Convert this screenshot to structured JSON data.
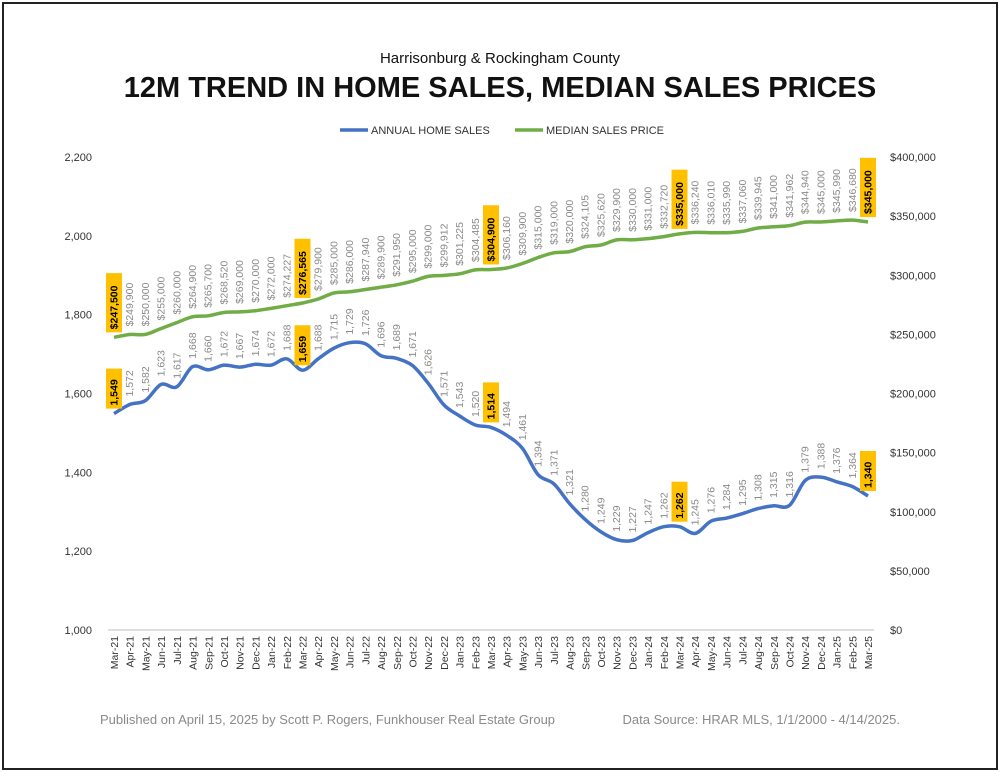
{
  "header": {
    "subtitle": "Harrisonburg & Rockingham County",
    "title": "12M TREND IN HOME SALES, MEDIAN SALES PRICES"
  },
  "footer": {
    "published": "Published on April 15, 2025 by Scott P. Rogers, Funkhouser Real Estate Group",
    "source": "Data Source: HRAR MLS, 1/1/2000 - 4/14/2025."
  },
  "colors": {
    "home_sales": "#4472C4",
    "median_price": "#70AD47",
    "highlight": "#FFC000",
    "axis_text": "#333333",
    "label_text": "#8a8a8a"
  },
  "chart_data": {
    "type": "line",
    "categories": [
      "Mar-21",
      "Apr-21",
      "May-21",
      "Jun-21",
      "Jul-21",
      "Aug-21",
      "Sep-21",
      "Oct-21",
      "Nov-21",
      "Dec-21",
      "Jan-22",
      "Feb-22",
      "Mar-22",
      "Apr-22",
      "May-22",
      "Jun-22",
      "Jul-22",
      "Aug-22",
      "Sep-22",
      "Oct-22",
      "Nov-22",
      "Dec-22",
      "Jan-23",
      "Feb-23",
      "Mar-23",
      "Apr-23",
      "May-23",
      "Jun-23",
      "Jul-23",
      "Aug-23",
      "Sep-23",
      "Oct-23",
      "Nov-23",
      "Dec-23",
      "Jan-24",
      "Feb-24",
      "Mar-24",
      "Apr-24",
      "May-24",
      "Jun-24",
      "Jul-24",
      "Aug-24",
      "Sep-24",
      "Oct-24",
      "Nov-24",
      "Dec-24",
      "Jan-25",
      "Feb-25",
      "Mar-25"
    ],
    "legend_position": "top",
    "series": [
      {
        "name": "ANNUAL HOME SALES",
        "axis": "left",
        "values": [
          1549,
          1572,
          1582,
          1623,
          1617,
          1668,
          1660,
          1672,
          1667,
          1674,
          1672,
          1688,
          1659,
          1688,
          1715,
          1729,
          1726,
          1696,
          1689,
          1671,
          1626,
          1571,
          1543,
          1520,
          1514,
          1494,
          1461,
          1394,
          1371,
          1321,
          1280,
          1249,
          1229,
          1227,
          1247,
          1262,
          1262,
          1245,
          1276,
          1284,
          1295,
          1308,
          1315,
          1316,
          1379,
          1388,
          1376,
          1364,
          1340
        ],
        "labels": [
          "1,549",
          "1,572",
          "1,582",
          "1,623",
          "1,617",
          "1,668",
          "1,660",
          "1,672",
          "1,667",
          "1,674",
          "1,672",
          "1,688",
          "1,659",
          "1,688",
          "1,715",
          "1,729",
          "1,726",
          "1,696",
          "1,689",
          "1,671",
          "1,626",
          "1,571",
          "1,543",
          "1,520",
          "1,514",
          "1,494",
          "1,461",
          "1,394",
          "1,371",
          "1,321",
          "1,280",
          "1,249",
          "1,229",
          "1,227",
          "1,247",
          "1,262",
          "1,262",
          "1,245",
          "1,276",
          "1,284",
          "1,295",
          "1,308",
          "1,315",
          "1,316",
          "1,379",
          "1,388",
          "1,376",
          "1,364",
          "1,340"
        ],
        "highlighted": [
          0,
          12,
          24,
          36,
          48
        ]
      },
      {
        "name": "MEDIAN SALES PRICE",
        "axis": "right",
        "values": [
          247500,
          249900,
          250000,
          255000,
          260000,
          264900,
          265700,
          268520,
          269000,
          270000,
          272000,
          274227,
          276565,
          279900,
          285000,
          286000,
          287940,
          289900,
          291950,
          295000,
          299000,
          299912,
          301225,
          304485,
          304900,
          306160,
          309900,
          315000,
          319000,
          320000,
          324105,
          325620,
          329900,
          330000,
          331000,
          332720,
          335000,
          336240,
          336010,
          335990,
          337060,
          339945,
          341000,
          341962,
          344940,
          345000,
          345990,
          346680,
          345000
        ],
        "labels": [
          "$247,500",
          "$249,900",
          "$250,000",
          "$255,000",
          "$260,000",
          "$264,900",
          "$265,700",
          "$268,520",
          "$269,000",
          "$270,000",
          "$272,000",
          "$274,227",
          "$276,565",
          "$279,900",
          "$285,000",
          "$286,000",
          "$287,940",
          "$289,900",
          "$291,950",
          "$295,000",
          "$299,000",
          "$299,912",
          "$301,225",
          "$304,485",
          "$304,900",
          "$306,160",
          "$309,900",
          "$315,000",
          "$319,000",
          "$320,000",
          "$324,105",
          "$325,620",
          "$329,900",
          "$330,000",
          "$331,000",
          "$332,720",
          "$335,000",
          "$336,240",
          "$336,010",
          "$335,990",
          "$337,060",
          "$339,945",
          "$341,000",
          "$341,962",
          "$344,940",
          "$345,000",
          "$345,990",
          "$346,680",
          "$345,000"
        ],
        "highlighted": [
          0,
          12,
          24,
          36,
          48
        ]
      }
    ],
    "y_left": {
      "ylim": [
        1000,
        2200
      ],
      "ticks": [
        1000,
        1200,
        1400,
        1600,
        1800,
        2000,
        2200
      ],
      "tick_labels": [
        "1,000",
        "1,200",
        "1,400",
        "1,600",
        "1,800",
        "2,000",
        "2,200"
      ]
    },
    "y_right": {
      "ylim": [
        0,
        400000
      ],
      "ticks": [
        0,
        50000,
        100000,
        150000,
        200000,
        250000,
        300000,
        350000,
        400000
      ],
      "tick_labels": [
        "$0",
        "$50,000",
        "$100,000",
        "$150,000",
        "$200,000",
        "$250,000",
        "$300,000",
        "$350,000",
        "$400,000"
      ]
    },
    "grid": false
  }
}
